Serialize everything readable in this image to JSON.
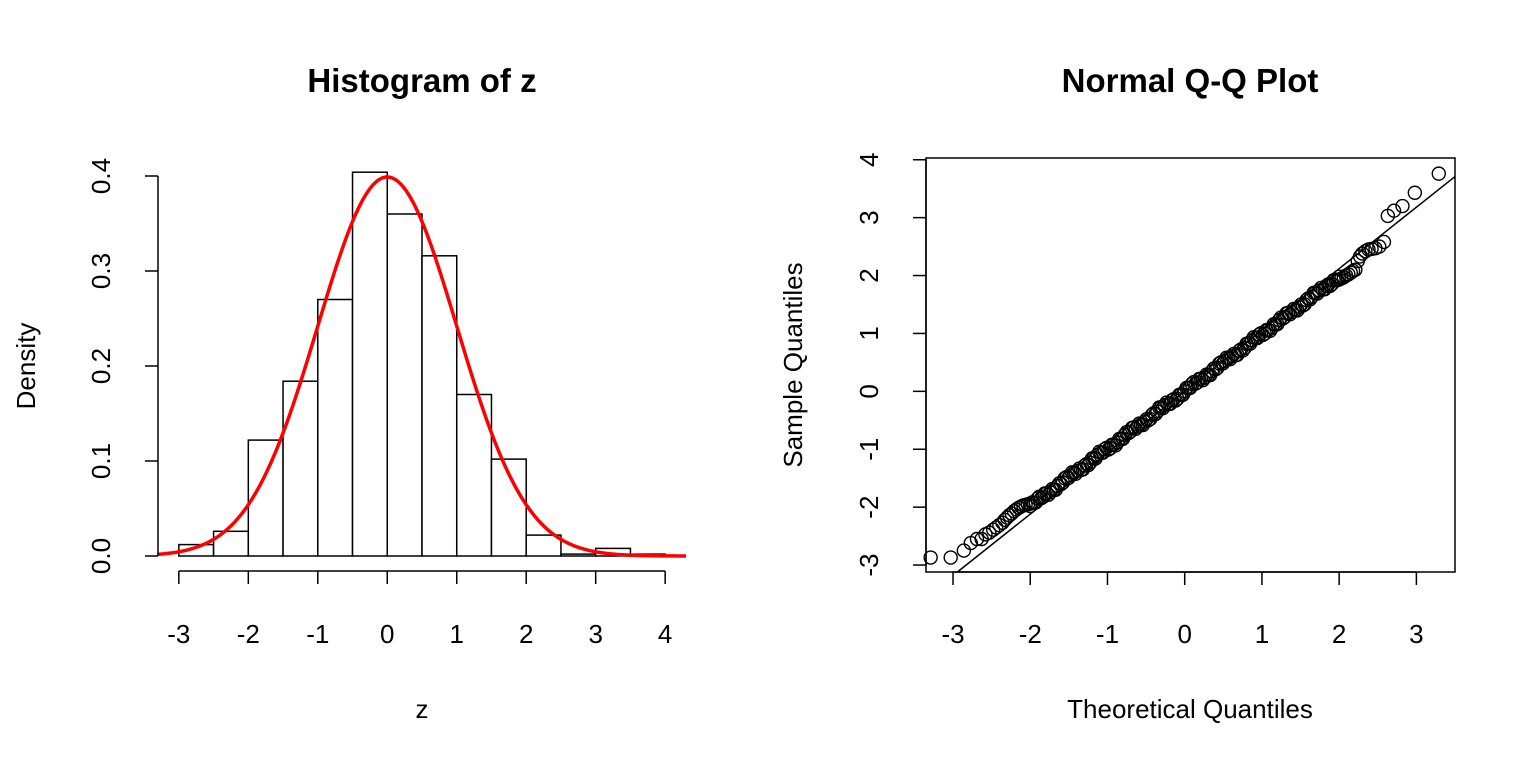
{
  "chart_data": [
    {
      "type": "bar",
      "subtype": "histogram-with-density-curve",
      "title": "Histogram of z",
      "xlabel": "z",
      "ylabel": "Density",
      "xlim": [
        -3.3,
        4.3
      ],
      "ylim": [
        0,
        0.4
      ],
      "x_ticks": [
        -3,
        -2,
        -1,
        0,
        1,
        2,
        3,
        4
      ],
      "y_ticks": [
        0.0,
        0.1,
        0.2,
        0.3,
        0.4
      ],
      "x_tick_labels": [
        "-3",
        "-2",
        "-1",
        "0",
        "1",
        "2",
        "3",
        "4"
      ],
      "y_tick_labels": [
        "0.0",
        "0.1",
        "0.2",
        "0.3",
        "0.4"
      ],
      "bin_edges": [
        -3.0,
        -2.5,
        -2.0,
        -1.5,
        -1.0,
        -0.5,
        0.0,
        0.5,
        1.0,
        1.5,
        2.0,
        2.5,
        3.0,
        3.5,
        4.0
      ],
      "values": [
        0.012,
        0.026,
        0.122,
        0.184,
        0.27,
        0.404,
        0.36,
        0.316,
        0.17,
        0.102,
        0.022,
        0.002,
        0.008,
        0.002
      ],
      "curve": {
        "type": "line",
        "kind": "standard normal density",
        "mean": 0,
        "sd": 1,
        "x_range": [
          -3.3,
          4.3
        ],
        "color": "#ff0000"
      },
      "bar_fill": "#ffffff",
      "bar_stroke": "#000000",
      "grid": false
    },
    {
      "type": "scatter",
      "subtype": "normal-qq-plot",
      "title": "Normal Q-Q Plot",
      "xlabel": "Theoretical Quantiles",
      "ylabel": "Sample Quantiles",
      "xlim": [
        -3.35,
        3.5
      ],
      "ylim": [
        -3.12,
        4.03
      ],
      "x_ticks": [
        -3,
        -2,
        -1,
        0,
        1,
        2,
        3
      ],
      "y_ticks": [
        -3,
        -2,
        -1,
        0,
        1,
        2,
        3,
        4
      ],
      "x_tick_labels": [
        "-3",
        "-2",
        "-1",
        "0",
        "1",
        "2",
        "3"
      ],
      "y_tick_labels": [
        "-3",
        "-2",
        "-1",
        "0",
        "1",
        "2",
        "3",
        "4"
      ],
      "n_points": 1000,
      "points": {
        "lower_tail": [
          [
            -3.29,
            -2.87
          ],
          [
            -3.03,
            -2.87
          ],
          [
            -2.86,
            -2.75
          ],
          [
            -2.77,
            -2.62
          ],
          [
            -2.69,
            -2.55
          ],
          [
            -2.63,
            -2.55
          ],
          [
            -2.58,
            -2.47
          ],
          [
            -2.53,
            -2.44
          ],
          [
            -2.48,
            -2.39
          ],
          [
            -2.44,
            -2.35
          ],
          [
            -2.4,
            -2.31
          ],
          [
            -2.36,
            -2.27
          ],
          [
            -2.33,
            -2.22
          ],
          [
            -2.3,
            -2.18
          ],
          [
            -2.27,
            -2.14
          ],
          [
            -2.24,
            -2.11
          ],
          [
            -2.21,
            -2.07
          ],
          [
            -2.18,
            -2.04
          ],
          [
            -2.15,
            -2.01
          ],
          [
            -2.12,
            -1.99
          ],
          [
            -2.09,
            -1.97
          ],
          [
            -2.06,
            -1.96
          ],
          [
            -2.03,
            -1.95
          ],
          [
            -2.0,
            -1.94
          ]
        ],
        "upper_tail": [
          [
            2.0,
            1.93
          ],
          [
            2.03,
            1.95
          ],
          [
            2.06,
            1.97
          ],
          [
            2.09,
            2.0
          ],
          [
            2.12,
            2.02
          ],
          [
            2.15,
            2.05
          ],
          [
            2.18,
            2.08
          ],
          [
            2.21,
            2.1
          ],
          [
            2.24,
            2.25
          ],
          [
            2.27,
            2.33
          ],
          [
            2.3,
            2.38
          ],
          [
            2.34,
            2.42
          ],
          [
            2.38,
            2.45
          ],
          [
            2.42,
            2.46
          ],
          [
            2.47,
            2.47
          ],
          [
            2.52,
            2.5
          ],
          [
            2.58,
            2.58
          ],
          [
            2.63,
            3.03
          ],
          [
            2.71,
            3.12
          ],
          [
            2.82,
            3.2
          ],
          [
            2.98,
            3.43
          ],
          [
            3.29,
            3.76
          ]
        ],
        "body": {
          "description": "remaining points lie approximately on the reference line between theoretical -2 and 2",
          "x_range": [
            -2.0,
            2.0
          ],
          "approx_slope": 0.99,
          "approx_intercept": 0.0
        }
      },
      "reference_line": {
        "slope": 1.06,
        "intercept": 0.0,
        "color": "#000000"
      },
      "marker": "open-circle",
      "grid": false
    }
  ]
}
